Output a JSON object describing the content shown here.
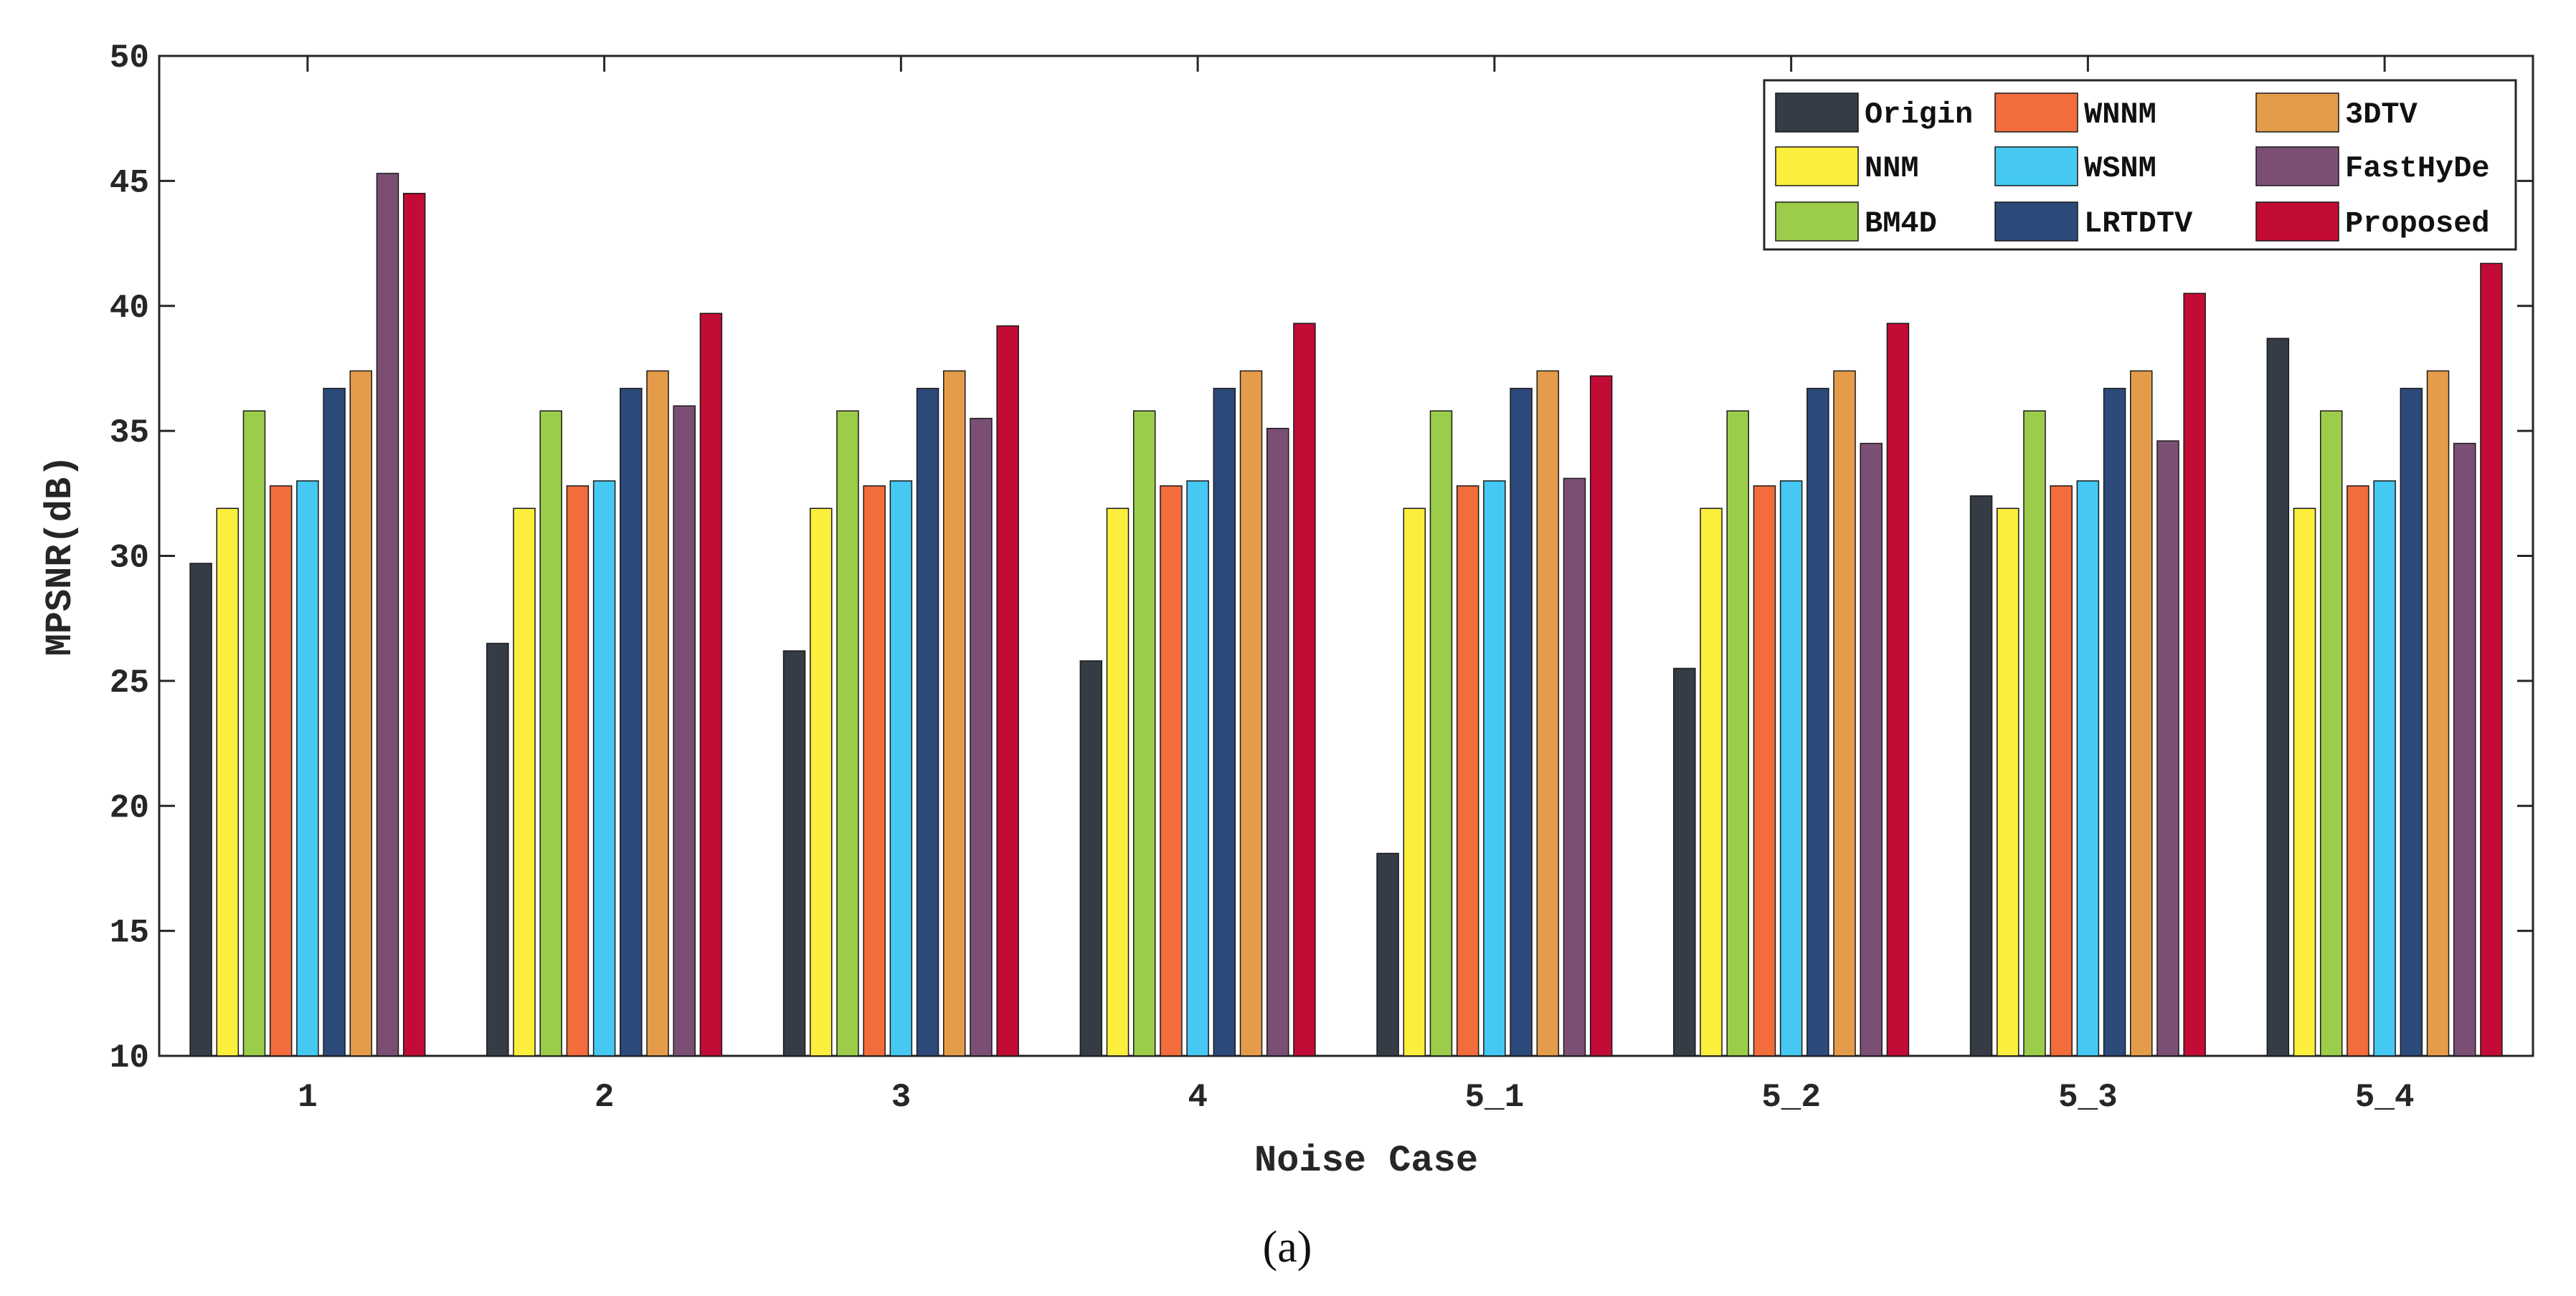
{
  "chart_data": {
    "type": "bar",
    "xlabel": "Noise Case",
    "ylabel": "MPSNR(dB)",
    "ylim": [
      10,
      50
    ],
    "yticks": [
      10,
      15,
      20,
      25,
      30,
      35,
      40,
      45,
      50
    ],
    "categories": [
      "1",
      "2",
      "3",
      "4",
      "5_1",
      "5_2",
      "5_3",
      "5_4"
    ],
    "legend_position": "top-right",
    "caption": "(a)",
    "series": [
      {
        "name": "Origin",
        "color": "#353c46",
        "values": [
          29.7,
          26.5,
          26.2,
          25.8,
          18.1,
          25.5,
          32.4,
          38.7
        ]
      },
      {
        "name": "NNM",
        "color": "#fbee3c",
        "values": [
          31.9,
          31.9,
          31.9,
          31.9,
          31.9,
          31.9,
          31.9,
          31.9
        ]
      },
      {
        "name": "BM4D",
        "color": "#9bcc4a",
        "values": [
          35.8,
          35.8,
          35.8,
          35.8,
          35.8,
          35.8,
          35.8,
          35.8
        ]
      },
      {
        "name": "WNNM",
        "color": "#f26c3c",
        "values": [
          32.8,
          32.8,
          32.8,
          32.8,
          32.8,
          32.8,
          32.8,
          32.8
        ]
      },
      {
        "name": "WSNM",
        "color": "#45c8f2",
        "values": [
          33.0,
          33.0,
          33.0,
          33.0,
          33.0,
          33.0,
          33.0,
          33.0
        ]
      },
      {
        "name": "LRTDTV",
        "color": "#2c4a7a",
        "values": [
          36.7,
          36.7,
          36.7,
          36.7,
          36.7,
          36.7,
          36.7,
          36.7
        ]
      },
      {
        "name": "3DTV",
        "color": "#e59c4a",
        "values": [
          37.4,
          37.4,
          37.4,
          37.4,
          37.4,
          37.4,
          37.4,
          37.4
        ]
      },
      {
        "name": "FastHyDe",
        "color": "#7b4f74",
        "values": [
          45.3,
          36.0,
          35.5,
          35.1,
          33.1,
          34.5,
          34.6,
          34.5
        ]
      },
      {
        "name": "Proposed",
        "color": "#c20b35",
        "values": [
          44.5,
          39.7,
          39.2,
          39.3,
          37.2,
          39.3,
          40.5,
          41.7
        ]
      }
    ],
    "legend_labels": [
      "Origin",
      "WNNM",
      "3DTV",
      "NNM",
      "WSNM",
      "FastHyDe",
      "BM4D",
      "LRTDTV",
      "Proposed"
    ]
  }
}
